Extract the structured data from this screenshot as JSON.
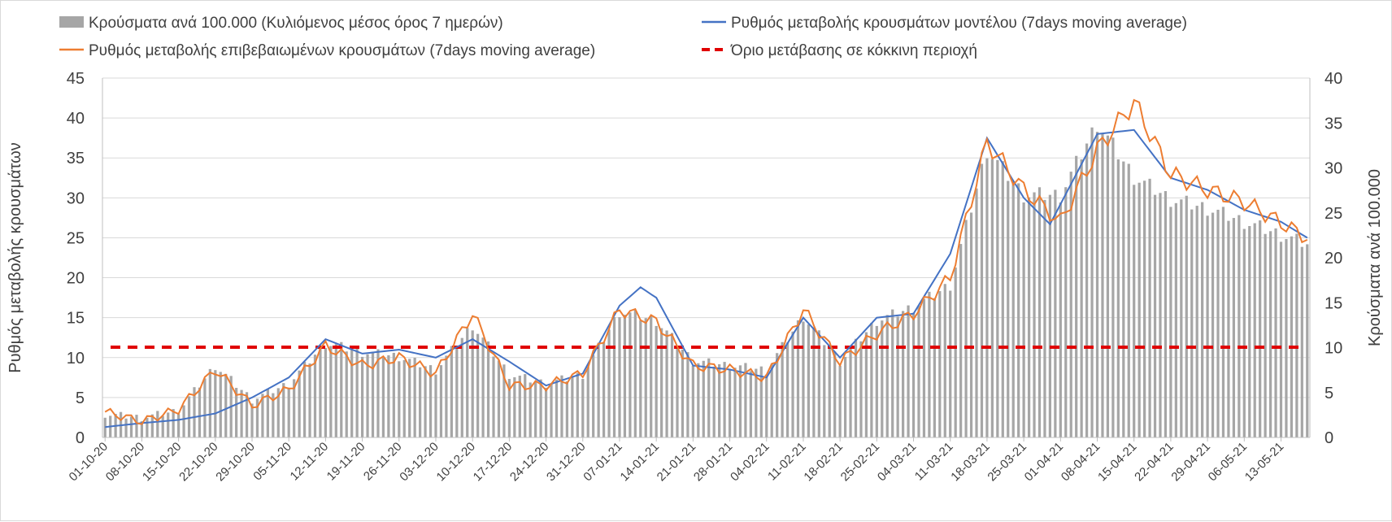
{
  "chart_data": {
    "type": "bar+line",
    "title": "",
    "legend": {
      "placement": "top",
      "items": [
        {
          "key": "bars",
          "label": "Κρούσματα ανά 100.000 (Κυλιόμενος μέσος όρος 7 ημερών)",
          "symbol": "bar"
        },
        {
          "key": "model",
          "label": "Ρυθμός μεταβολής κρουσμάτων μοντέλου (7days moving average)",
          "symbol": "line"
        },
        {
          "key": "confirmed",
          "label": "Ρυθμός μεταβολής επιβεβαιωμένων κρουσμάτων (7days moving average)",
          "symbol": "line"
        },
        {
          "key": "threshold",
          "label": "Όριο μετάβασης σε κόκκινη περιοχή",
          "symbol": "dashed"
        }
      ]
    },
    "y_left": {
      "label": "Ρυθμός μεταβολής κρουσμάτων",
      "min": 0,
      "max": 45,
      "ticks": [
        "0",
        "5",
        "10",
        "15",
        "20",
        "25",
        "30",
        "35",
        "40",
        "45"
      ]
    },
    "y_right": {
      "label": "Κρούσματα ανά 100.000",
      "min": 0,
      "max": 40,
      "ticks": [
        "0",
        "5",
        "10",
        "15",
        "20",
        "25",
        "30",
        "35",
        "40"
      ]
    },
    "grid": true,
    "x_ticks": [
      "01-10-20",
      "08-10-20",
      "15-10-20",
      "22-10-20",
      "29-10-20",
      "05-11-20",
      "12-11-20",
      "19-11-20",
      "26-11-20",
      "03-12-20",
      "10-12-20",
      "17-12-20",
      "24-12-20",
      "31-12-20",
      "07-01-21",
      "14-01-21",
      "21-01-21",
      "28-01-21",
      "04-02-21",
      "11-02-21",
      "18-02-21",
      "25-02-21",
      "04-03-21",
      "11-03-21",
      "18-03-21",
      "25-03-21",
      "01-04-21",
      "08-04-21",
      "15-04-21",
      "22-04-21",
      "29-04-21",
      "06-05-21",
      "13-05-21"
    ],
    "x_days": 230,
    "colors": {
      "bars": "#a6a6a6",
      "model": "#4472c4",
      "confirmed": "#ed7d31",
      "threshold": "#e00000",
      "grid": "#d9d9d9"
    },
    "threshold_value": 11.3,
    "series": [
      {
        "name": "Κρούσματα ανά 100.000 (Κυλιόμενος μέσος όρος 7 ημερών)",
        "axis": "right",
        "kind": "bar",
        "points": [
          [
            0,
            2.6
          ],
          [
            7,
            2.2
          ],
          [
            14,
            3.0
          ],
          [
            21,
            8.0
          ],
          [
            28,
            4.2
          ],
          [
            35,
            6.0
          ],
          [
            42,
            10.5
          ],
          [
            49,
            9.5
          ],
          [
            56,
            9.0
          ],
          [
            63,
            7.5
          ],
          [
            70,
            12.5
          ],
          [
            77,
            7.0
          ],
          [
            84,
            6.0
          ],
          [
            91,
            7.0
          ],
          [
            98,
            14.0
          ],
          [
            105,
            13.0
          ],
          [
            112,
            8.5
          ],
          [
            119,
            8.0
          ],
          [
            126,
            7.5
          ],
          [
            133,
            13.5
          ],
          [
            140,
            8.5
          ],
          [
            147,
            13.0
          ],
          [
            154,
            14.5
          ],
          [
            161,
            17.0
          ],
          [
            168,
            32.0
          ],
          [
            175,
            27.0
          ],
          [
            182,
            27.0
          ],
          [
            189,
            35.0
          ],
          [
            196,
            29.0
          ],
          [
            203,
            26.5
          ],
          [
            210,
            25.5
          ],
          [
            217,
            24.0
          ],
          [
            229,
            21.5
          ]
        ]
      },
      {
        "name": "Ρυθμός μεταβολής κρουσμάτων μοντέλου (7days moving average)",
        "axis": "left",
        "kind": "line",
        "points": [
          [
            0,
            1.3
          ],
          [
            7,
            1.8
          ],
          [
            14,
            2.2
          ],
          [
            21,
            3.0
          ],
          [
            28,
            5.0
          ],
          [
            35,
            7.5
          ],
          [
            42,
            12.3
          ],
          [
            49,
            10.5
          ],
          [
            56,
            11.0
          ],
          [
            63,
            10.0
          ],
          [
            70,
            12.3
          ],
          [
            77,
            9.5
          ],
          [
            84,
            6.5
          ],
          [
            91,
            8.0
          ],
          [
            98,
            16.5
          ],
          [
            102,
            18.8
          ],
          [
            105,
            17.5
          ],
          [
            112,
            9.0
          ],
          [
            119,
            8.5
          ],
          [
            126,
            7.5
          ],
          [
            133,
            15.0
          ],
          [
            140,
            10.0
          ],
          [
            147,
            15.0
          ],
          [
            154,
            15.5
          ],
          [
            161,
            23.0
          ],
          [
            168,
            37.5
          ],
          [
            175,
            30.0
          ],
          [
            180,
            26.7
          ],
          [
            189,
            38.0
          ],
          [
            196,
            38.5
          ],
          [
            203,
            32.5
          ],
          [
            210,
            31.0
          ],
          [
            217,
            28.5
          ],
          [
            224,
            27.0
          ],
          [
            229,
            25.0
          ]
        ]
      },
      {
        "name": "Ρυθμός μεταβολής επιβεβαιωμένων κρουσμάτων (7days moving average)",
        "axis": "left",
        "kind": "line",
        "points": [
          [
            0,
            3.2
          ],
          [
            7,
            2.0
          ],
          [
            14,
            3.5
          ],
          [
            21,
            8.5
          ],
          [
            28,
            4.0
          ],
          [
            35,
            6.0
          ],
          [
            42,
            11.5
          ],
          [
            49,
            9.0
          ],
          [
            56,
            10.0
          ],
          [
            63,
            8.0
          ],
          [
            70,
            15.5
          ],
          [
            77,
            6.5
          ],
          [
            84,
            6.5
          ],
          [
            91,
            8.0
          ],
          [
            98,
            16.0
          ],
          [
            105,
            14.5
          ],
          [
            112,
            9.0
          ],
          [
            119,
            8.5
          ],
          [
            126,
            7.5
          ],
          [
            133,
            16.0
          ],
          [
            140,
            9.5
          ],
          [
            147,
            13.0
          ],
          [
            154,
            15.5
          ],
          [
            161,
            20.0
          ],
          [
            168,
            37.0
          ],
          [
            175,
            31.0
          ],
          [
            182,
            27.0
          ],
          [
            189,
            36.0
          ],
          [
            196,
            42.0
          ],
          [
            203,
            33.0
          ],
          [
            210,
            31.0
          ],
          [
            217,
            29.5
          ],
          [
            229,
            25.0
          ]
        ]
      }
    ]
  }
}
